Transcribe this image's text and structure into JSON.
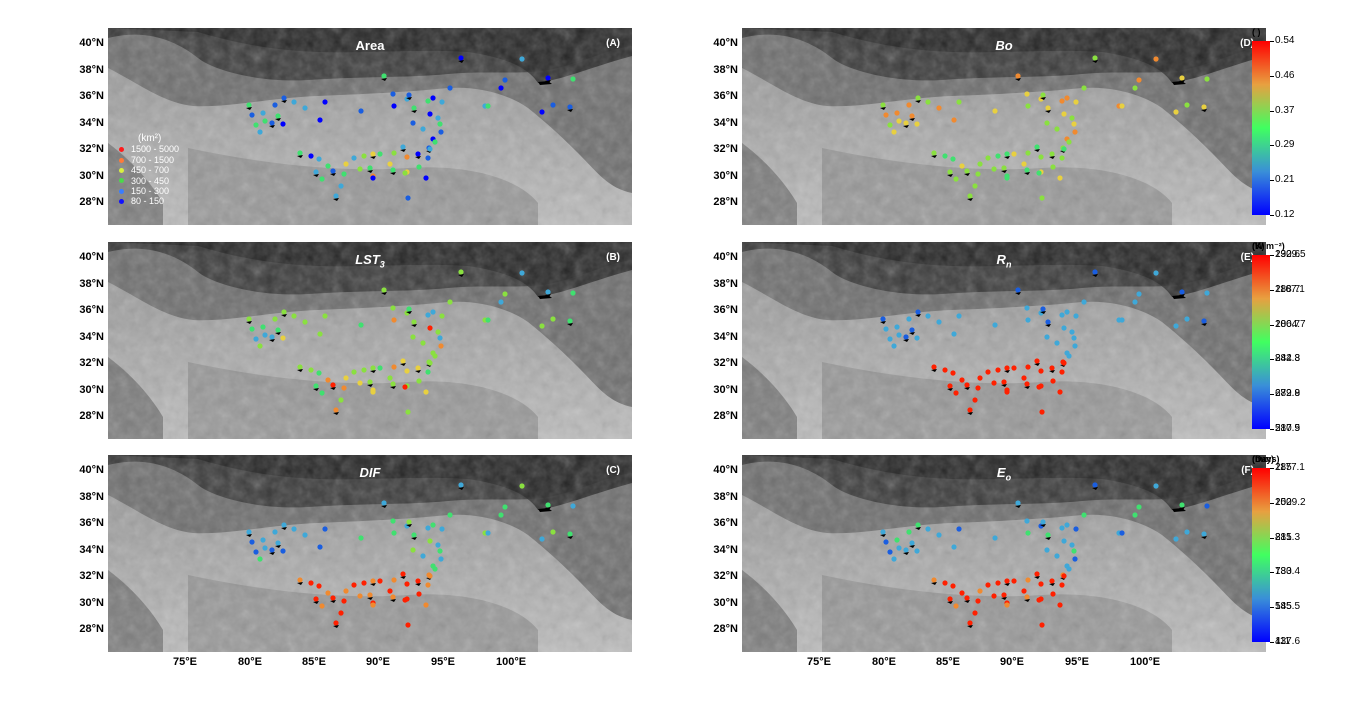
{
  "latitude_labels": [
    "40°N",
    "38°N",
    "36°N",
    "34°N",
    "32°N",
    "30°N",
    "28°N"
  ],
  "longitude_labels": [
    "75°E",
    "80°E",
    "85°E",
    "90°E",
    "95°E",
    "100°E"
  ],
  "panels": [
    {
      "id": "A",
      "title": "Area",
      "letter": "(A)",
      "sub": ""
    },
    {
      "id": "B",
      "title": "LST",
      "sub": "3",
      "letter": "(B)"
    },
    {
      "id": "C",
      "title": "DIF",
      "letter": "(C)",
      "sub": ""
    },
    {
      "id": "D",
      "title": "Bo",
      "letter": "(D)",
      "sub": ""
    },
    {
      "id": "E",
      "title": "R",
      "sub": "n",
      "letter": "(E)"
    },
    {
      "id": "F",
      "title": "E",
      "sub": "o",
      "letter": "(F)"
    }
  ],
  "area_legend": {
    "unit": "(km²)",
    "classes": [
      {
        "label": "1500 - 5000",
        "color": "#ff1a1a"
      },
      {
        "label": "700 - 1500",
        "color": "#ff7a3a"
      },
      {
        "label": "450 - 700",
        "color": "#d8f040"
      },
      {
        "label": "300 - 450",
        "color": "#4bd84b"
      },
      {
        "label": "150 - 300",
        "color": "#3a7cff"
      },
      {
        "label": "80 - 150",
        "color": "#1010ff"
      }
    ]
  },
  "colorbars": [
    {
      "panel": "B",
      "unit": "(K)",
      "ticks": [
        "290.6",
        "288.7",
        "286.7",
        "284.8",
        "282.8",
        "280.9"
      ]
    },
    {
      "panel": "C",
      "unit": "(Days)",
      "ticks": [
        "285",
        "250",
        "215",
        "180",
        "145",
        "111"
      ]
    },
    {
      "panel": "D",
      "unit": "( )",
      "ticks": [
        "0.54",
        "0.46",
        "0.37",
        "0.29",
        "0.21",
        "0.12"
      ]
    },
    {
      "panel": "E",
      "unit": "(W m⁻²)",
      "ticks": [
        "1329.5",
        "1167.1",
        "1004.7",
        "842.3",
        "679.9",
        "517.5"
      ]
    },
    {
      "panel": "F",
      "unit": "(mm)",
      "ticks": [
        "1177.1",
        "1029.2",
        "881.3",
        "733.4",
        "585.5",
        "437.6"
      ]
    }
  ],
  "colors": {
    "cb_top": "#ff0000",
    "cb_upper": "#e8a040",
    "cb_mid": "#40ff60",
    "cb_lower": "#3a8fd8",
    "cb_bottom": "#0000ff"
  }
}
